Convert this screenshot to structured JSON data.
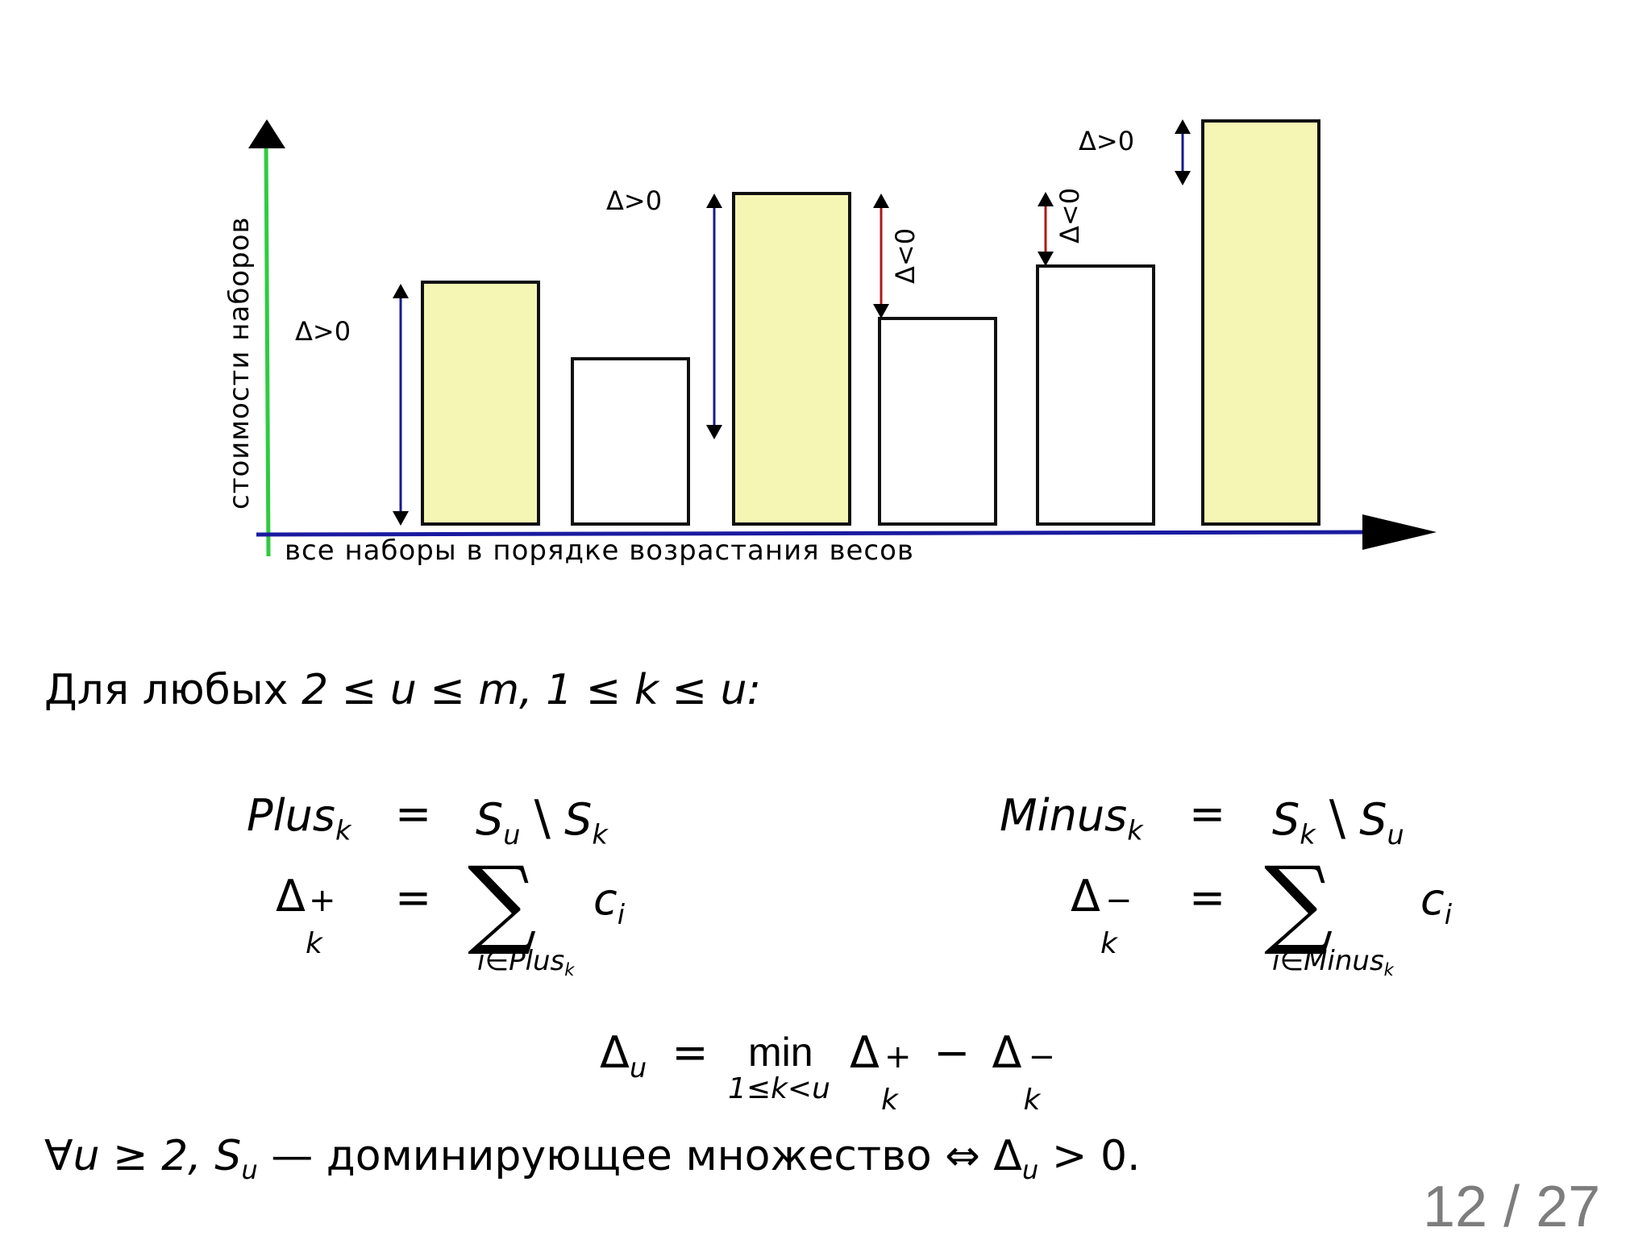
{
  "figure": {
    "y_axis_label": "стоимости наборов",
    "x_axis_label": "все наборы в порядке возрастания весов",
    "colors": {
      "y_axis": "#2ecc40",
      "x_axis": "#1a1aa0",
      "bar_highlight": "#f6f6b4",
      "bar_plain": "#ffffff",
      "arrow_positive": "#1a1a8c",
      "arrow_negative": "#b01818"
    },
    "bars": [
      {
        "value": 0.6,
        "highlighted": true
      },
      {
        "value": 0.41,
        "highlighted": false
      },
      {
        "value": 0.82,
        "highlighted": true
      },
      {
        "value": 0.51,
        "highlighted": false
      },
      {
        "value": 0.64,
        "highlighted": false
      },
      {
        "value": 1.0,
        "highlighted": true
      }
    ],
    "annotations": [
      {
        "label": "Δ>0",
        "sign": "positive"
      },
      {
        "label": "Δ>0",
        "sign": "positive"
      },
      {
        "label": "Δ<0",
        "sign": "negative"
      },
      {
        "label": "Δ<0",
        "sign": "negative"
      },
      {
        "label": "Δ>0",
        "sign": "positive"
      }
    ]
  },
  "intro": {
    "prefix": "Для любых",
    "condition": "2 ≤ u ≤ m, 1 ≤ k ≤ u:"
  },
  "equations": {
    "plus_lhs": "Plus",
    "plus_rhs_a": "S",
    "plus_rhs_b": "S",
    "minus_lhs": "Minus",
    "minus_rhs_a": "S",
    "minus_rhs_b": "S",
    "sub_k": "k",
    "sub_u": "u",
    "sub_i": "i",
    "delta": "Δ",
    "sum_sign": "∑",
    "c": "c",
    "plus_sum_index": "i∈Plus",
    "minus_sum_index": "i∈Minus",
    "eq": "=",
    "setminus": "\\",
    "min": "min",
    "min_index": "1≤k<u"
  },
  "conclusion": {
    "text": "∀u ≥ 2, S",
    "middle": " — доминирующее множество ⇔ Δ",
    "end": " > 0."
  },
  "page": {
    "current": "12",
    "separator": "/",
    "total": "27"
  }
}
